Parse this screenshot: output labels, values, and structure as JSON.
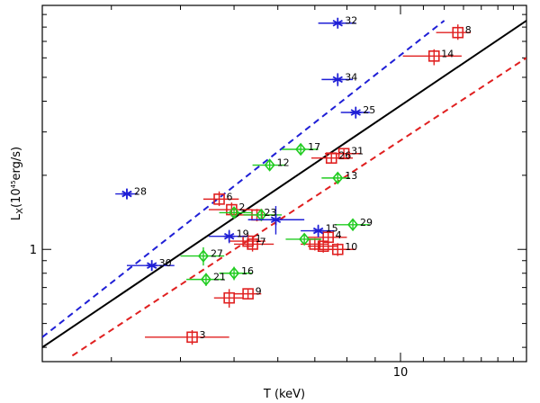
{
  "chart_data": {
    "type": "scatter",
    "xlabel": "T (keV)",
    "ylabel_main": "L",
    "ylabel_sub": "X",
    "ylabel_rest": "(10",
    "ylabel_sup": "45",
    "ylabel_tail": "erg/s)",
    "xscale": "log",
    "yscale": "log",
    "xlim": [
      2.25,
      16.9
    ],
    "ylim": [
      0.35,
      9.8
    ],
    "x_tick_labels": [
      {
        "value": 10,
        "label": "10"
      }
    ],
    "y_tick_labels": [
      {
        "value": 1,
        "label": "1"
      }
    ],
    "x_minor_ticks": [
      3,
      4,
      5,
      6,
      7,
      8,
      9,
      10,
      11,
      12,
      13,
      14,
      15,
      16
    ],
    "y_minor_ticks": [
      0.4,
      0.5,
      0.6,
      0.7,
      0.8,
      0.9,
      1,
      2,
      3,
      4,
      5,
      6,
      7,
      8,
      9
    ],
    "lines": [
      {
        "color": "#000000",
        "dash": "solid",
        "points": [
          [
            2.25,
            0.4
          ],
          [
            16.9,
            8.5
          ]
        ]
      },
      {
        "color": "#1f1fd6",
        "dash": "dashed",
        "points": [
          [
            2.25,
            0.44
          ],
          [
            12.0,
            8.5
          ]
        ]
      },
      {
        "color": "#e02020",
        "dash": "dashed",
        "points": [
          [
            2.55,
            0.37
          ],
          [
            16.9,
            6.0
          ]
        ]
      }
    ],
    "series": [
      {
        "marker": "square",
        "color": "#e02020",
        "points": [
          {
            "label": "8",
            "x": 12.7,
            "y": 7.6,
            "xerr": [
              11.6,
              13.4
            ],
            "yerr": [
              7.1,
              8.2
            ]
          },
          {
            "label": "14",
            "x": 11.5,
            "y": 6.1,
            "xerr": [
              10.1,
              12.9
            ],
            "yerr": [
              5.6,
              6.5
            ]
          },
          {
            "label": "31",
            "x": 7.9,
            "y": 2.45,
            "xerr": [
              7.3,
              8.5
            ],
            "yerr": [
              2.35,
              2.55
            ]
          },
          {
            "label": "26",
            "x": 7.5,
            "y": 2.35,
            "xerr": [
              6.9,
              8.2
            ],
            "yerr": [
              2.25,
              2.45
            ]
          },
          {
            "label": "6",
            "x": 4.7,
            "y": 1.6,
            "xerr": [
              4.4,
              5.1
            ],
            "yerr": [
              1.5,
              1.72
            ]
          },
          {
            "label": "2",
            "x": 4.95,
            "y": 1.45,
            "xerr": [
              4.5,
              5.4
            ],
            "yerr": [
              1.36,
              1.55
            ]
          },
          {
            "label": "23",
            "x": 5.5,
            "y": 1.38,
            "xerr": [
              5.1,
              6.0
            ],
            "yerr": [
              1.3,
              1.46
            ]
          },
          {
            "label": "1",
            "x": 5.3,
            "y": 1.08,
            "xerr": [
              4.9,
              5.7
            ],
            "yerr": [
              1.01,
              1.15
            ]
          },
          {
            "label": "7",
            "x": 5.4,
            "y": 1.05,
            "xerr": [
              5.0,
              5.9
            ],
            "yerr": [
              0.98,
              1.12
            ]
          },
          {
            "label": "4",
            "x": 7.4,
            "y": 1.12,
            "xerr": [
              6.8,
              8.0
            ],
            "yerr": [
              1.05,
              1.19
            ]
          },
          {
            "label": "10",
            "x": 7.7,
            "y": 1.0,
            "xerr": [
              7.1,
              8.3
            ],
            "yerr": [
              0.94,
              1.06
            ]
          },
          {
            "label": "",
            "x": 7.25,
            "y": 1.03,
            "xerr": [
              6.8,
              7.7
            ],
            "yerr": [
              0.97,
              1.09
            ]
          },
          {
            "label": "",
            "x": 7.0,
            "y": 1.05,
            "xerr": [
              6.6,
              7.4
            ],
            "yerr": [
              0.99,
              1.11
            ]
          },
          {
            "label": "9",
            "x": 5.3,
            "y": 0.66,
            "xerr": [
              5.0,
              5.6
            ],
            "yerr": [
              0.63,
              0.69
            ]
          },
          {
            "label": "",
            "x": 4.9,
            "y": 0.635,
            "xerr": [
              4.6,
              5.2
            ],
            "yerr": [
              0.58,
              0.69
            ]
          },
          {
            "label": "3",
            "x": 4.2,
            "y": 0.44,
            "xerr": [
              3.45,
              4.9
            ],
            "yerr": [
              0.41,
              0.47
            ]
          }
        ]
      },
      {
        "marker": "diamond",
        "color": "#20cc20",
        "points": [
          {
            "label": "17",
            "x": 6.6,
            "y": 2.55,
            "xerr": [
              6.1,
              7.1
            ],
            "yerr": [
              2.45,
              2.65
            ]
          },
          {
            "label": "12",
            "x": 5.8,
            "y": 2.2,
            "xerr": [
              5.4,
              6.2
            ],
            "yerr": [
              2.1,
              2.3
            ]
          },
          {
            "label": "13",
            "x": 7.7,
            "y": 1.95,
            "xerr": [
              7.2,
              8.1
            ],
            "yerr": [
              1.85,
              2.05
            ]
          },
          {
            "label": "",
            "x": 5.0,
            "y": 1.41,
            "xerr": [
              4.7,
              5.4
            ],
            "yerr": [
              1.34,
              1.48
            ]
          },
          {
            "label": "",
            "x": 5.6,
            "y": 1.38,
            "xerr": [
              5.2,
              6.1
            ],
            "yerr": [
              1.31,
              1.45
            ]
          },
          {
            "label": "29",
            "x": 8.2,
            "y": 1.26,
            "xerr": [
              7.6,
              8.8
            ],
            "yerr": [
              1.19,
              1.33
            ]
          },
          {
            "label": "",
            "x": 6.7,
            "y": 1.1,
            "xerr": [
              6.2,
              7.2
            ],
            "yerr": [
              1.04,
              1.16
            ]
          },
          {
            "label": "27",
            "x": 4.4,
            "y": 0.94,
            "xerr": [
              4.0,
              4.8
            ],
            "yerr": [
              0.86,
              1.02
            ]
          },
          {
            "label": "16",
            "x": 5.0,
            "y": 0.8,
            "xerr": [
              4.7,
              5.4
            ],
            "yerr": [
              0.75,
              0.85
            ]
          },
          {
            "label": "21",
            "x": 4.45,
            "y": 0.755,
            "xerr": [
              4.1,
              4.8
            ],
            "yerr": [
              0.71,
              0.8
            ]
          }
        ]
      },
      {
        "marker": "asterisk",
        "color": "#1f1fd6",
        "points": [
          {
            "label": "32",
            "x": 7.7,
            "y": 8.3,
            "xerr": [
              7.1,
              8.3
            ],
            "yerr": [
              7.9,
              8.7
            ]
          },
          {
            "label": "34",
            "x": 7.7,
            "y": 4.9,
            "xerr": [
              7.2,
              8.2
            ],
            "yerr": [
              4.6,
              5.2
            ]
          },
          {
            "label": "25",
            "x": 8.3,
            "y": 3.6,
            "xerr": [
              7.8,
              8.8
            ],
            "yerr": [
              3.4,
              3.8
            ]
          },
          {
            "label": "28",
            "x": 3.2,
            "y": 1.68,
            "xerr": [
              3.05,
              3.35
            ],
            "yerr": [
              1.6,
              1.76
            ]
          },
          {
            "label": "",
            "x": 5.95,
            "y": 1.32,
            "xerr": [
              5.3,
              6.7
            ],
            "yerr": [
              1.15,
              1.5
            ]
          },
          {
            "label": "15",
            "x": 7.1,
            "y": 1.19,
            "xerr": [
              6.6,
              7.6
            ],
            "yerr": [
              1.12,
              1.26
            ]
          },
          {
            "label": "19",
            "x": 4.9,
            "y": 1.13,
            "xerr": [
              4.5,
              5.3
            ],
            "yerr": [
              1.06,
              1.2
            ]
          },
          {
            "label": "30",
            "x": 3.55,
            "y": 0.86,
            "xerr": [
              3.2,
              3.9
            ],
            "yerr": [
              0.82,
              0.9
            ]
          }
        ]
      }
    ]
  }
}
